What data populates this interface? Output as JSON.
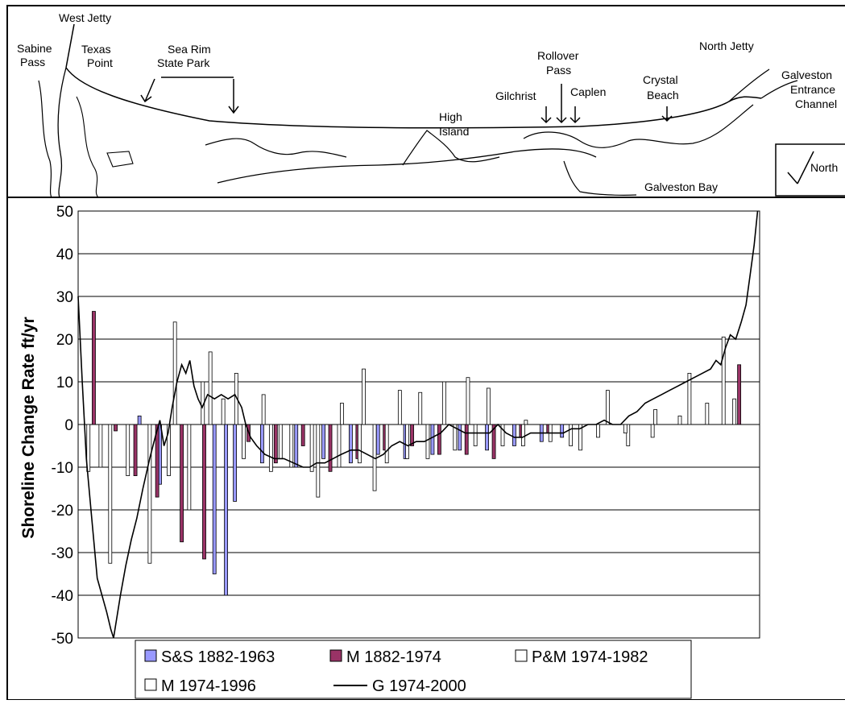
{
  "map": {
    "places": [
      {
        "id": "west-jetty",
        "lines": [
          "West Jetty"
        ]
      },
      {
        "id": "sabine-pass",
        "lines": [
          "Sabine",
          "Pass"
        ]
      },
      {
        "id": "texas-point",
        "lines": [
          "Texas",
          "Point"
        ]
      },
      {
        "id": "sea-rim-state-park",
        "lines": [
          "Sea Rim",
          "State Park"
        ]
      },
      {
        "id": "high-island",
        "lines": [
          "High",
          "Island"
        ]
      },
      {
        "id": "gilchrist",
        "lines": [
          "Gilchrist"
        ]
      },
      {
        "id": "rollover-pass",
        "lines": [
          "Rollover",
          "Pass"
        ]
      },
      {
        "id": "caplen",
        "lines": [
          "Caplen"
        ]
      },
      {
        "id": "crystal-beach",
        "lines": [
          "Crystal",
          "Beach"
        ]
      },
      {
        "id": "north-jetty",
        "lines": [
          "North Jetty"
        ]
      },
      {
        "id": "galveston-entrance-channel",
        "lines": [
          "Galveston",
          "Entrance",
          "Channel"
        ]
      },
      {
        "id": "galveston-bay",
        "lines": [
          "Galveston Bay"
        ]
      }
    ],
    "north_label": "North"
  },
  "chart_data": {
    "type": "bar",
    "ylabel": "Shoreline Change Rate ft/yr",
    "ylim": [
      -50,
      50
    ],
    "yticks": [
      50,
      40,
      30,
      20,
      10,
      0,
      -10,
      -20,
      -30,
      -40,
      -50
    ],
    "grid": true,
    "legend_position": "bottom",
    "xlim": [
      0,
      100
    ],
    "series": [
      {
        "name": "S&S 1882-1963",
        "color": "#9999ff",
        "points": [
          [
            9,
            2
          ],
          [
            12,
            -14
          ],
          [
            20,
            -35
          ],
          [
            21.7,
            -40
          ],
          [
            23,
            -18
          ],
          [
            27,
            -9
          ],
          [
            32,
            -10
          ],
          [
            36,
            -8
          ],
          [
            40,
            -9
          ],
          [
            44,
            -7
          ],
          [
            48,
            -8
          ],
          [
            52,
            -7
          ],
          [
            56,
            -6
          ],
          [
            60,
            -6
          ],
          [
            64,
            -5
          ],
          [
            68,
            -4
          ],
          [
            71,
            -3
          ]
        ]
      },
      {
        "name": "M 1882-1974",
        "color": "#993366",
        "points": [
          [
            2.3,
            26.5
          ],
          [
            5.5,
            -1.5
          ],
          [
            8.4,
            -12
          ],
          [
            11.6,
            -17
          ],
          [
            15.2,
            -27.5
          ],
          [
            18.5,
            -31.5
          ],
          [
            25,
            -4
          ],
          [
            29,
            -9
          ],
          [
            33,
            -5
          ],
          [
            37,
            -11
          ],
          [
            41,
            -8
          ],
          [
            45,
            -6
          ],
          [
            49,
            -5
          ],
          [
            53,
            -7
          ],
          [
            57,
            -7
          ],
          [
            61,
            -8
          ],
          [
            65,
            -3
          ],
          [
            69,
            -2
          ],
          [
            97,
            14
          ]
        ]
      },
      {
        "name": "P&M 1974-1982",
        "color": "#ffffff",
        "points": [
          [
            1.8,
            -11
          ],
          [
            5,
            -32.5
          ],
          [
            10.8,
            -32.5
          ],
          [
            14.5,
            24
          ],
          [
            19.7,
            17
          ],
          [
            23.5,
            12
          ],
          [
            27.5,
            7
          ],
          [
            30,
            -8
          ],
          [
            35.5,
            -17
          ],
          [
            39,
            5
          ],
          [
            42.2,
            13
          ],
          [
            43.8,
            -15.5
          ],
          [
            47.5,
            8
          ],
          [
            50.5,
            7.5
          ],
          [
            54,
            10
          ],
          [
            57.5,
            11
          ],
          [
            60.5,
            8.5
          ],
          [
            66,
            1
          ],
          [
            74,
            -6
          ],
          [
            78,
            8
          ],
          [
            81,
            -5
          ],
          [
            85,
            3.5
          ],
          [
            90,
            12
          ],
          [
            95,
            20.5
          ]
        ]
      },
      {
        "name": "M  1974-1996",
        "color": "#ffffff",
        "points": [
          [
            3,
            -10
          ],
          [
            7,
            -12
          ],
          [
            13,
            -12
          ],
          [
            16,
            -20
          ],
          [
            18,
            10
          ],
          [
            21,
            6
          ],
          [
            24,
            -8
          ],
          [
            28,
            -11
          ],
          [
            31,
            -10
          ],
          [
            34,
            -11
          ],
          [
            38,
            -10
          ],
          [
            41,
            -9
          ],
          [
            45,
            -9
          ],
          [
            48,
            -8
          ],
          [
            51,
            -8
          ],
          [
            55,
            -6
          ],
          [
            58,
            -5
          ],
          [
            62,
            -5
          ],
          [
            65,
            -5
          ],
          [
            69,
            -4
          ],
          [
            72,
            -5
          ],
          [
            76,
            -3
          ],
          [
            80,
            -2
          ],
          [
            84,
            -3
          ],
          [
            88,
            2
          ],
          [
            92,
            5
          ],
          [
            96,
            6
          ]
        ]
      },
      {
        "name": "G 1974-2000",
        "color": "#000000",
        "points": [
          [
            0,
            30
          ],
          [
            0.6,
            10
          ],
          [
            1.2,
            -8
          ],
          [
            2,
            -22
          ],
          [
            2.8,
            -36
          ],
          [
            3.5,
            -40
          ],
          [
            4.2,
            -44
          ],
          [
            4.8,
            -48
          ],
          [
            5.2,
            -50
          ],
          [
            5.6,
            -46
          ],
          [
            6.2,
            -40
          ],
          [
            7,
            -33
          ],
          [
            7.8,
            -27
          ],
          [
            8.6,
            -22
          ],
          [
            9.5,
            -15
          ],
          [
            10.5,
            -8
          ],
          [
            11.3,
            -3
          ],
          [
            12,
            1
          ],
          [
            12.6,
            -5
          ],
          [
            13.2,
            -2
          ],
          [
            13.8,
            4
          ],
          [
            14.5,
            10
          ],
          [
            15.2,
            14
          ],
          [
            15.8,
            12
          ],
          [
            16.4,
            15
          ],
          [
            17,
            9
          ],
          [
            17.6,
            6
          ],
          [
            18.2,
            4
          ],
          [
            19,
            7
          ],
          [
            20,
            6
          ],
          [
            21,
            7
          ],
          [
            22,
            6
          ],
          [
            23,
            7
          ],
          [
            24,
            4
          ],
          [
            24.6,
            0
          ],
          [
            25.3,
            -3
          ],
          [
            26.2,
            -5
          ],
          [
            27.4,
            -7
          ],
          [
            28.8,
            -8
          ],
          [
            30.2,
            -8
          ],
          [
            31.6,
            -9
          ],
          [
            33,
            -10
          ],
          [
            34,
            -10
          ],
          [
            35,
            -9
          ],
          [
            36.2,
            -9
          ],
          [
            37.4,
            -8
          ],
          [
            38.6,
            -7
          ],
          [
            40,
            -6
          ],
          [
            41.2,
            -6
          ],
          [
            42.4,
            -7
          ],
          [
            43.6,
            -8
          ],
          [
            44.8,
            -7
          ],
          [
            46,
            -5
          ],
          [
            47.2,
            -4
          ],
          [
            48.4,
            -5
          ],
          [
            49.6,
            -4
          ],
          [
            50.8,
            -4
          ],
          [
            52,
            -3
          ],
          [
            53.2,
            -2
          ],
          [
            54.4,
            0
          ],
          [
            55.6,
            -1
          ],
          [
            56.8,
            -2
          ],
          [
            58,
            -2
          ],
          [
            59.2,
            -2
          ],
          [
            60.4,
            -2
          ],
          [
            61.6,
            0
          ],
          [
            62.8,
            -2
          ],
          [
            64,
            -3
          ],
          [
            65.2,
            -3
          ],
          [
            66.4,
            -2
          ],
          [
            67.6,
            -2
          ],
          [
            68.8,
            -2
          ],
          [
            70,
            -2
          ],
          [
            71.2,
            -2
          ],
          [
            72.4,
            -1
          ],
          [
            73.6,
            -1
          ],
          [
            74.8,
            0
          ],
          [
            76,
            0
          ],
          [
            77.2,
            1
          ],
          [
            78.4,
            0
          ],
          [
            79.6,
            0
          ],
          [
            80.8,
            2
          ],
          [
            82,
            3
          ],
          [
            83.2,
            5
          ],
          [
            84.4,
            6
          ],
          [
            85.6,
            7
          ],
          [
            86.8,
            8
          ],
          [
            88,
            9
          ],
          [
            89.2,
            10
          ],
          [
            90.4,
            11
          ],
          [
            91.6,
            12
          ],
          [
            92.8,
            13
          ],
          [
            93.6,
            15
          ],
          [
            94.3,
            14
          ],
          [
            95,
            18
          ],
          [
            95.7,
            21
          ],
          [
            96.5,
            20
          ],
          [
            97.3,
            24
          ],
          [
            98,
            28
          ],
          [
            98.6,
            35
          ],
          [
            99.2,
            42
          ],
          [
            99.7,
            50
          ]
        ]
      }
    ]
  }
}
